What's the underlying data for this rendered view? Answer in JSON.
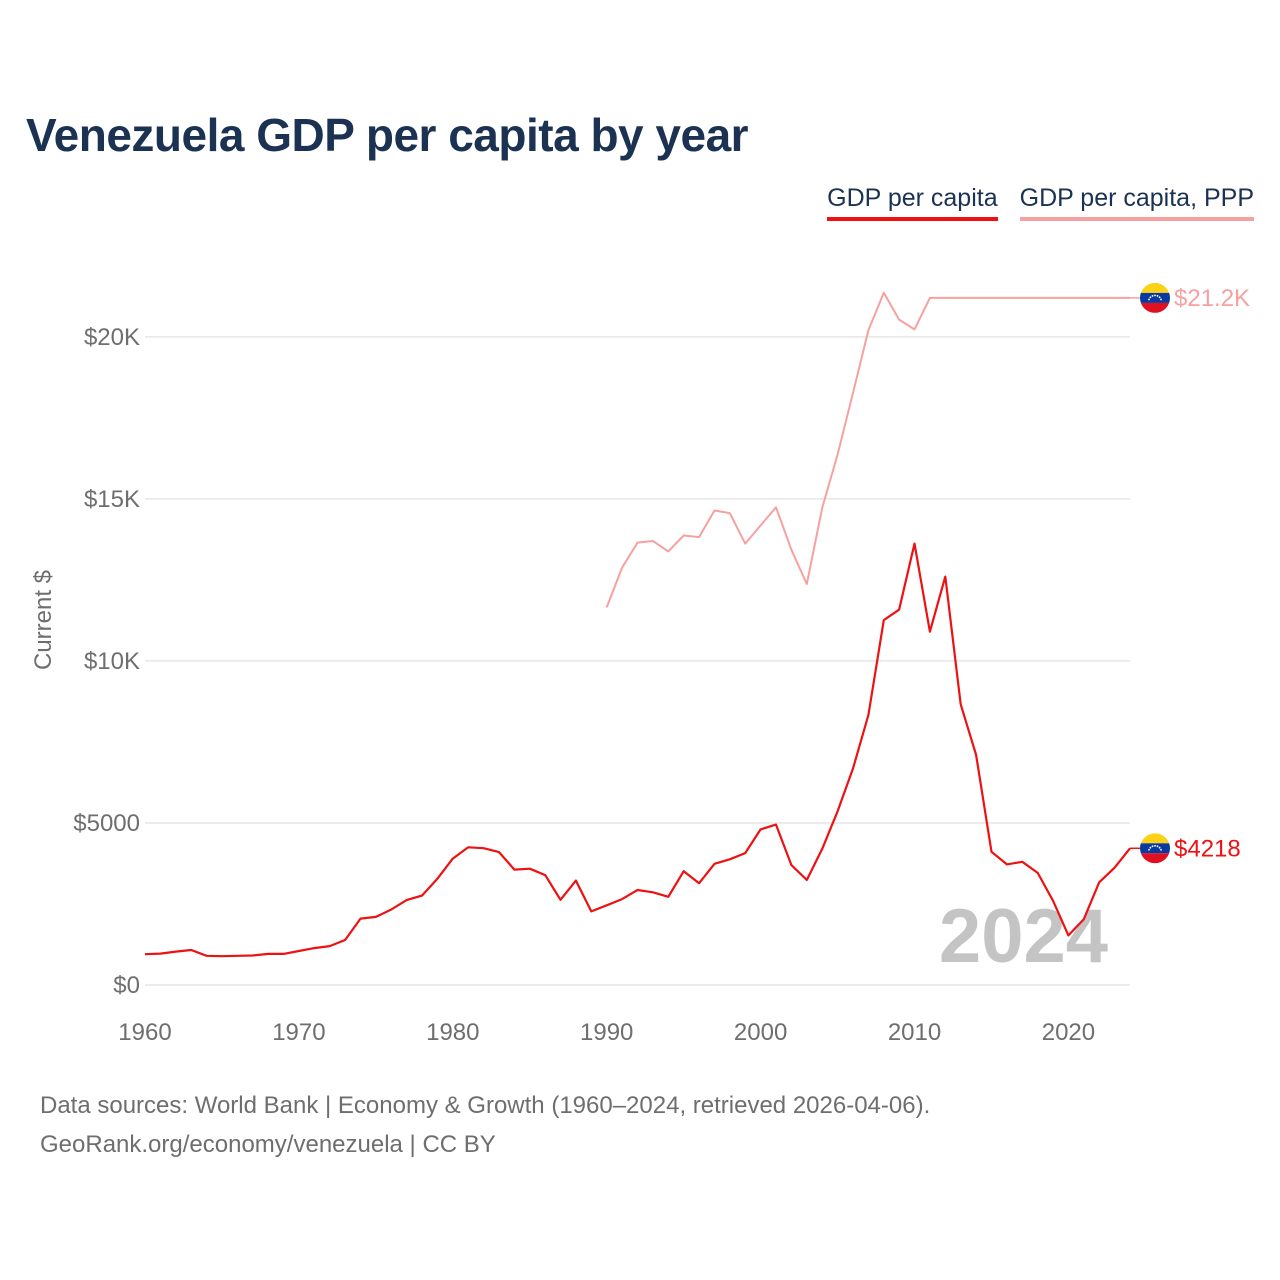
{
  "title": "Venezuela GDP per capita by year",
  "legend": {
    "gdp": "GDP per capita",
    "ppp": "GDP per capita, PPP"
  },
  "colors": {
    "gdp": "#ee1111",
    "ppp": "#f7a0a0",
    "title": "#1b3252",
    "grid": "#e6e6e6",
    "axis_text": "#6e6e6e",
    "year_watermark": "#c4c4c4"
  },
  "year_watermark": "2024",
  "end_labels": {
    "gdp": "$4218",
    "ppp": "$21.2K"
  },
  "sources": {
    "line1": "Data sources: World Bank | Economy & Growth (1960–2024, retrieved 2026-04-06).",
    "line2": "GeoRank.org/economy/venezuela | CC BY"
  },
  "chart_data": {
    "type": "line",
    "title": "Venezuela GDP per capita by year",
    "xlabel": "",
    "ylabel": "Current $",
    "xlim": [
      1960,
      2024
    ],
    "ylim": [
      0,
      22000
    ],
    "x_ticks": [
      1960,
      1970,
      1980,
      1990,
      2000,
      2010,
      2020
    ],
    "y_ticks": [
      {
        "value": 0,
        "label": "$0"
      },
      {
        "value": 5000,
        "label": "$5000"
      },
      {
        "value": 10000,
        "label": "$10K"
      },
      {
        "value": 15000,
        "label": "$15K"
      },
      {
        "value": 20000,
        "label": "$20K"
      }
    ],
    "grid": true,
    "legend_position": "top-right",
    "series": [
      {
        "name": "GDP per capita",
        "key": "gdp",
        "x": [
          1960,
          1961,
          1962,
          1963,
          1964,
          1965,
          1966,
          1967,
          1968,
          1969,
          1970,
          1971,
          1972,
          1973,
          1974,
          1975,
          1976,
          1977,
          1978,
          1979,
          1980,
          1981,
          1982,
          1983,
          1984,
          1985,
          1986,
          1987,
          1988,
          1989,
          1990,
          1991,
          1992,
          1993,
          1994,
          1995,
          1996,
          1997,
          1998,
          1999,
          2000,
          2001,
          2002,
          2003,
          2004,
          2005,
          2006,
          2007,
          2008,
          2009,
          2010,
          2011,
          2012,
          2013,
          2014,
          2015,
          2016,
          2017,
          2018,
          2019,
          2020,
          2021,
          2022,
          2023,
          2024
        ],
        "values": [
          950,
          970,
          1030,
          1080,
          900,
          890,
          900,
          910,
          960,
          960,
          1050,
          1140,
          1200,
          1390,
          2050,
          2100,
          2330,
          2620,
          2760,
          3280,
          3900,
          4250,
          4220,
          4100,
          3560,
          3590,
          3390,
          2630,
          3220,
          2270,
          2460,
          2650,
          2930,
          2860,
          2720,
          3510,
          3140,
          3740,
          3880,
          4070,
          4800,
          4950,
          3700,
          3240,
          4200,
          5360,
          6680,
          8330,
          11260,
          11580,
          13620,
          10900,
          12600,
          8660,
          7100,
          4110,
          3720,
          3800,
          3460,
          2600,
          1530,
          2030,
          3170,
          3620,
          4218
        ]
      },
      {
        "name": "GDP per capita, PPP",
        "key": "ppp",
        "x": [
          1990,
          1991,
          1992,
          1993,
          1994,
          1995,
          1996,
          1997,
          1998,
          1999,
          2000,
          2001,
          2002,
          2003,
          2004,
          2005,
          2006,
          2007,
          2008,
          2009,
          2010,
          2011,
          2012,
          2013,
          2014,
          2015,
          2016,
          2017,
          2018,
          2019,
          2020,
          2021,
          2022,
          2023,
          2024
        ],
        "values": [
          11650,
          12880,
          13650,
          13700,
          13380,
          13870,
          13820,
          14640,
          14560,
          13620,
          14180,
          14740,
          13430,
          12370,
          14720,
          16370,
          18270,
          20200,
          21360,
          20530,
          20230,
          21200,
          21200,
          21200,
          21200,
          21200,
          21200,
          21200,
          21200,
          21200,
          21200,
          21200,
          21200,
          21200,
          21200
        ]
      }
    ]
  }
}
